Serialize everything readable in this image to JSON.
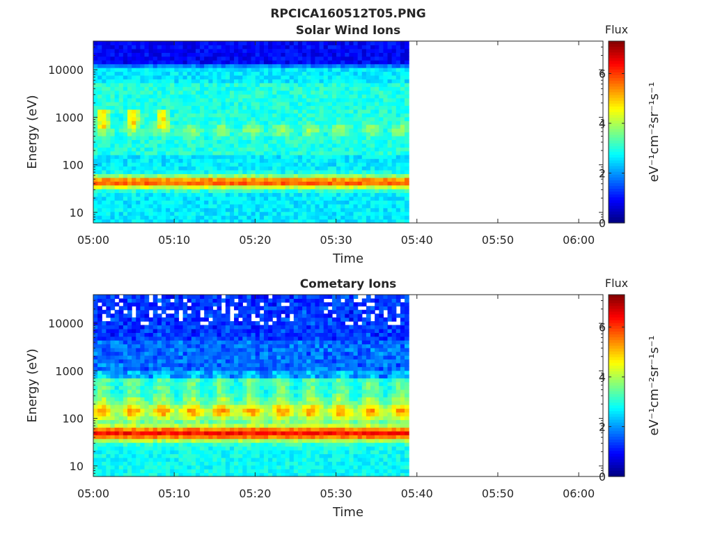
{
  "figure": {
    "suptitle": "RPCICA160512T05.PNG"
  },
  "chart_data": [
    {
      "type": "heatmap",
      "title": "Solar Wind Ions",
      "xlabel": "Time",
      "ylabel": "Energy (eV)",
      "y_scale": "log",
      "xlim": [
        "05:00",
        "06:03"
      ],
      "ylim": [
        6,
        40000
      ],
      "x_ticks": [
        "05:00",
        "05:10",
        "05:20",
        "05:30",
        "05:40",
        "05:50",
        "06:00"
      ],
      "y_ticks": [
        "10",
        "100",
        "1000",
        "10000"
      ],
      "data_time_range": [
        "05:00",
        "05:39"
      ],
      "colorbar": {
        "title": "Flux",
        "label": "eV⁻¹cm⁻²sr⁻¹s⁻¹",
        "range": [
          0,
          7.3
        ],
        "ticks": [
          "0",
          "2",
          "4",
          "6"
        ],
        "colormap": "jet"
      },
      "features": {
        "main_band_energy_eV": 40,
        "main_band_flux": 5.8,
        "secondary_band_energy_eV": 500,
        "secondary_band_flux": 3.6,
        "early_high_energy_patch_eV": 800,
        "early_high_energy_patch_flux": 4.8,
        "background_flux": 2.6
      }
    },
    {
      "type": "heatmap",
      "title": "Cometary Ions",
      "xlabel": "Time",
      "ylabel": "Energy (eV)",
      "y_scale": "log",
      "xlim": [
        "05:00",
        "06:03"
      ],
      "ylim": [
        6,
        40000
      ],
      "x_ticks": [
        "05:00",
        "05:10",
        "05:20",
        "05:30",
        "05:40",
        "05:50",
        "06:00"
      ],
      "y_ticks": [
        "10",
        "100",
        "1000",
        "10000"
      ],
      "data_time_range": [
        "05:00",
        "05:39"
      ],
      "colorbar": {
        "title": "Flux",
        "label": "eV⁻¹cm⁻²sr⁻¹s⁻¹",
        "range": [
          0,
          7.3
        ],
        "ticks": [
          "0",
          "2",
          "4",
          "6"
        ],
        "colormap": "jet"
      },
      "features": {
        "main_band_energy_eV": 45,
        "main_band_flux": 6.3,
        "secondary_band_energy_eV": 130,
        "secondary_band_flux": 4.6,
        "high_energy_background_flux": 1.0,
        "background_flux": 2.8
      }
    }
  ]
}
